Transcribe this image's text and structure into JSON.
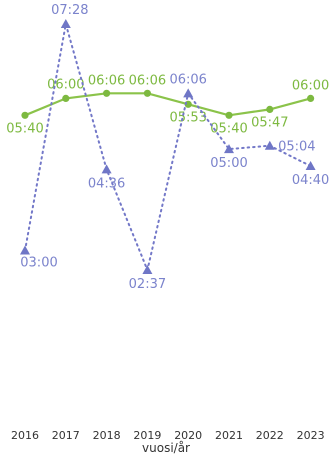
{
  "chart_data": {
    "type": "line",
    "xlabel": "vuosi/år",
    "categories": [
      "2016",
      "2017",
      "2018",
      "2019",
      "2020",
      "2021",
      "2022",
      "2023"
    ],
    "ylim": [
      2.0,
      7.75
    ],
    "grid": false,
    "series": [
      {
        "style": "solid line, circle markers",
        "color": "#8bc34a",
        "values": [
          5.6667,
          6.0,
          6.1,
          6.1,
          5.8833,
          5.6667,
          5.7833,
          6.0
        ],
        "labels": [
          "05:40",
          "06:00",
          "06:06",
          "06:06",
          "05:53",
          "05:40",
          "05:47",
          "06:00"
        ]
      },
      {
        "style": "dotted line, triangle markers",
        "color": "#7378c8",
        "values": [
          3.0,
          7.4667,
          4.6,
          2.6167,
          6.1,
          5.0,
          5.0667,
          4.6667
        ],
        "labels": [
          "03:00",
          "07:28",
          "04:36",
          "02:37",
          "06:06",
          "05:00",
          "05:04",
          "04:40"
        ]
      }
    ]
  }
}
